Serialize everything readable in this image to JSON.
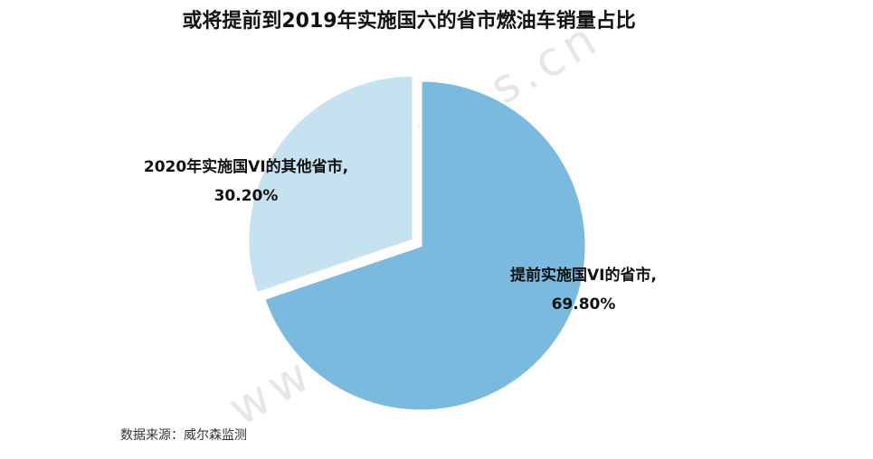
{
  "chart_data": {
    "type": "pie",
    "title": "或将提前到2019年实施国六的省市燃油车销量占比",
    "categories": [
      "提前实施国VI的省市,",
      "2020年实施国VI的其他省市,"
    ],
    "values": [
      69.8,
      30.2
    ],
    "value_labels": [
      "69.80%",
      "30.20%"
    ],
    "colors": [
      "#7bbadf",
      "#c5e2f0"
    ],
    "source": "数据来源：威尔森监测",
    "watermark": "www.way-s.cn"
  }
}
